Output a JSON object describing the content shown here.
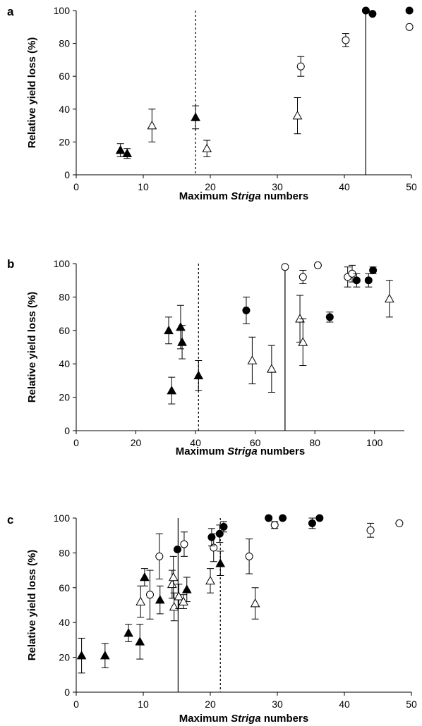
{
  "chart_data": [
    {
      "type": "scatter",
      "panel_label": "a",
      "xlabel_prefix": "Maximum ",
      "xlabel_italic": "Striga",
      "xlabel_suffix": " numbers",
      "ylabel": "Relative yield loss (%)",
      "xlim": [
        0,
        50
      ],
      "ylim": [
        0,
        100
      ],
      "xticks": [
        0,
        10,
        20,
        30,
        40,
        50
      ],
      "yticks": [
        0,
        20,
        40,
        60,
        80,
        100
      ],
      "vlines": [
        {
          "x": 17.8,
          "style": "dotted"
        },
        {
          "x": 43.2,
          "style": "solid"
        }
      ],
      "series": [
        {
          "marker": "filled-triangle",
          "points": [
            {
              "x": 6.6,
              "y": 15,
              "err": 4
            },
            {
              "x": 7.6,
              "y": 13,
              "err": 3
            },
            {
              "x": 17.8,
              "y": 35,
              "err": 7
            }
          ]
        },
        {
          "marker": "open-triangle",
          "points": [
            {
              "x": 11.3,
              "y": 30,
              "err": 10
            },
            {
              "x": 19.5,
              "y": 16,
              "err": 5
            },
            {
              "x": 33.0,
              "y": 36,
              "err": 11
            }
          ]
        },
        {
          "marker": "open-circle",
          "points": [
            {
              "x": 33.5,
              "y": 66,
              "err": 6
            },
            {
              "x": 40.2,
              "y": 82,
              "err": 4
            },
            {
              "x": 49.7,
              "y": 90,
              "err": 0
            }
          ]
        },
        {
          "marker": "filled-circle",
          "points": [
            {
              "x": 43.2,
              "y": 100,
              "err": 0
            },
            {
              "x": 44.2,
              "y": 98,
              "err": 0
            },
            {
              "x": 49.7,
              "y": 100,
              "err": 0
            }
          ]
        }
      ]
    },
    {
      "type": "scatter",
      "panel_label": "b",
      "xlabel_prefix": "Maximum ",
      "xlabel_italic": "Striga",
      "xlabel_suffix": " numbers",
      "ylabel": "Relative yield loss (%)",
      "xlim": [
        0,
        110
      ],
      "ylim": [
        0,
        100
      ],
      "xticks": [
        0,
        20,
        40,
        60,
        80,
        100
      ],
      "yticks": [
        0,
        20,
        40,
        60,
        80,
        100
      ],
      "vlines": [
        {
          "x": 41,
          "style": "dotted"
        },
        {
          "x": 70,
          "style": "solid"
        }
      ],
      "series": [
        {
          "marker": "filled-triangle",
          "points": [
            {
              "x": 31,
              "y": 60,
              "err": 8
            },
            {
              "x": 32,
              "y": 24,
              "err": 8
            },
            {
              "x": 35,
              "y": 62,
              "err": 13
            },
            {
              "x": 35.5,
              "y": 53,
              "err": 10
            },
            {
              "x": 41,
              "y": 33,
              "err": 9
            }
          ]
        },
        {
          "marker": "open-triangle",
          "points": [
            {
              "x": 59,
              "y": 42,
              "err": 14
            },
            {
              "x": 65.5,
              "y": 37,
              "err": 14
            },
            {
              "x": 75,
              "y": 67,
              "err": 14
            },
            {
              "x": 76,
              "y": 53,
              "err": 14
            },
            {
              "x": 105,
              "y": 79,
              "err": 11
            }
          ]
        },
        {
          "marker": "open-circle",
          "points": [
            {
              "x": 70,
              "y": 98,
              "err": 0
            },
            {
              "x": 76,
              "y": 92,
              "err": 4
            },
            {
              "x": 81,
              "y": 99,
              "err": 0
            },
            {
              "x": 91,
              "y": 92,
              "err": 6
            },
            {
              "x": 92.5,
              "y": 94,
              "err": 5
            }
          ]
        },
        {
          "marker": "filled-circle",
          "points": [
            {
              "x": 57,
              "y": 72,
              "err": 8
            },
            {
              "x": 85,
              "y": 68,
              "err": 3
            },
            {
              "x": 94,
              "y": 90,
              "err": 4
            },
            {
              "x": 98,
              "y": 90,
              "err": 4
            },
            {
              "x": 99.5,
              "y": 96,
              "err": 2
            }
          ]
        }
      ]
    },
    {
      "type": "scatter",
      "panel_label": "c",
      "xlabel_prefix": "Maximum ",
      "xlabel_italic": "Striga",
      "xlabel_suffix": " numbers",
      "ylabel": "Relative yield loss (%)",
      "xlim": [
        0,
        50
      ],
      "ylim": [
        0,
        100
      ],
      "xticks": [
        0,
        10,
        20,
        30,
        40,
        50
      ],
      "yticks": [
        0,
        20,
        40,
        60,
        80,
        100
      ],
      "vlines": [
        {
          "x": 15.2,
          "style": "solid"
        },
        {
          "x": 21.5,
          "style": "dotted"
        }
      ],
      "series": [
        {
          "marker": "filled-triangle",
          "points": [
            {
              "x": 0.8,
              "y": 21,
              "err": 10
            },
            {
              "x": 4.3,
              "y": 21,
              "err": 7
            },
            {
              "x": 7.8,
              "y": 34,
              "err": 5
            },
            {
              "x": 9.5,
              "y": 29,
              "err": 10
            },
            {
              "x": 10.2,
              "y": 66,
              "err": 5
            },
            {
              "x": 12.5,
              "y": 53,
              "err": 8
            },
            {
              "x": 16.5,
              "y": 59,
              "err": 7
            },
            {
              "x": 21.5,
              "y": 74,
              "err": 7
            }
          ]
        },
        {
          "marker": "open-triangle",
          "points": [
            {
              "x": 9.6,
              "y": 52,
              "err": 9
            },
            {
              "x": 14.3,
              "y": 62,
              "err": 8
            },
            {
              "x": 14.5,
              "y": 66,
              "err": 12
            },
            {
              "x": 14.6,
              "y": 49,
              "err": 8
            },
            {
              "x": 15.3,
              "y": 55,
              "err": 7
            },
            {
              "x": 16.0,
              "y": 52,
              "err": 4
            },
            {
              "x": 20.0,
              "y": 64,
              "err": 7
            },
            {
              "x": 26.7,
              "y": 51,
              "err": 9
            }
          ]
        },
        {
          "marker": "open-circle",
          "points": [
            {
              "x": 11.0,
              "y": 56,
              "err": 14
            },
            {
              "x": 12.4,
              "y": 78,
              "err": 13
            },
            {
              "x": 16.1,
              "y": 85,
              "err": 7
            },
            {
              "x": 20.5,
              "y": 83,
              "err": 8
            },
            {
              "x": 25.8,
              "y": 78,
              "err": 10
            },
            {
              "x": 29.6,
              "y": 96,
              "err": 2
            },
            {
              "x": 43.9,
              "y": 93,
              "err": 4
            },
            {
              "x": 48.2,
              "y": 97,
              "err": 0
            }
          ]
        },
        {
          "marker": "filled-circle",
          "points": [
            {
              "x": 15.1,
              "y": 82,
              "err": 0
            },
            {
              "x": 20.2,
              "y": 89,
              "err": 5
            },
            {
              "x": 21.4,
              "y": 91,
              "err": 5
            },
            {
              "x": 22.0,
              "y": 95,
              "err": 3
            },
            {
              "x": 28.7,
              "y": 100,
              "err": 0
            },
            {
              "x": 30.8,
              "y": 100,
              "err": 0
            },
            {
              "x": 35.2,
              "y": 97,
              "err": 3
            },
            {
              "x": 36.3,
              "y": 100,
              "err": 0
            }
          ]
        }
      ]
    }
  ]
}
